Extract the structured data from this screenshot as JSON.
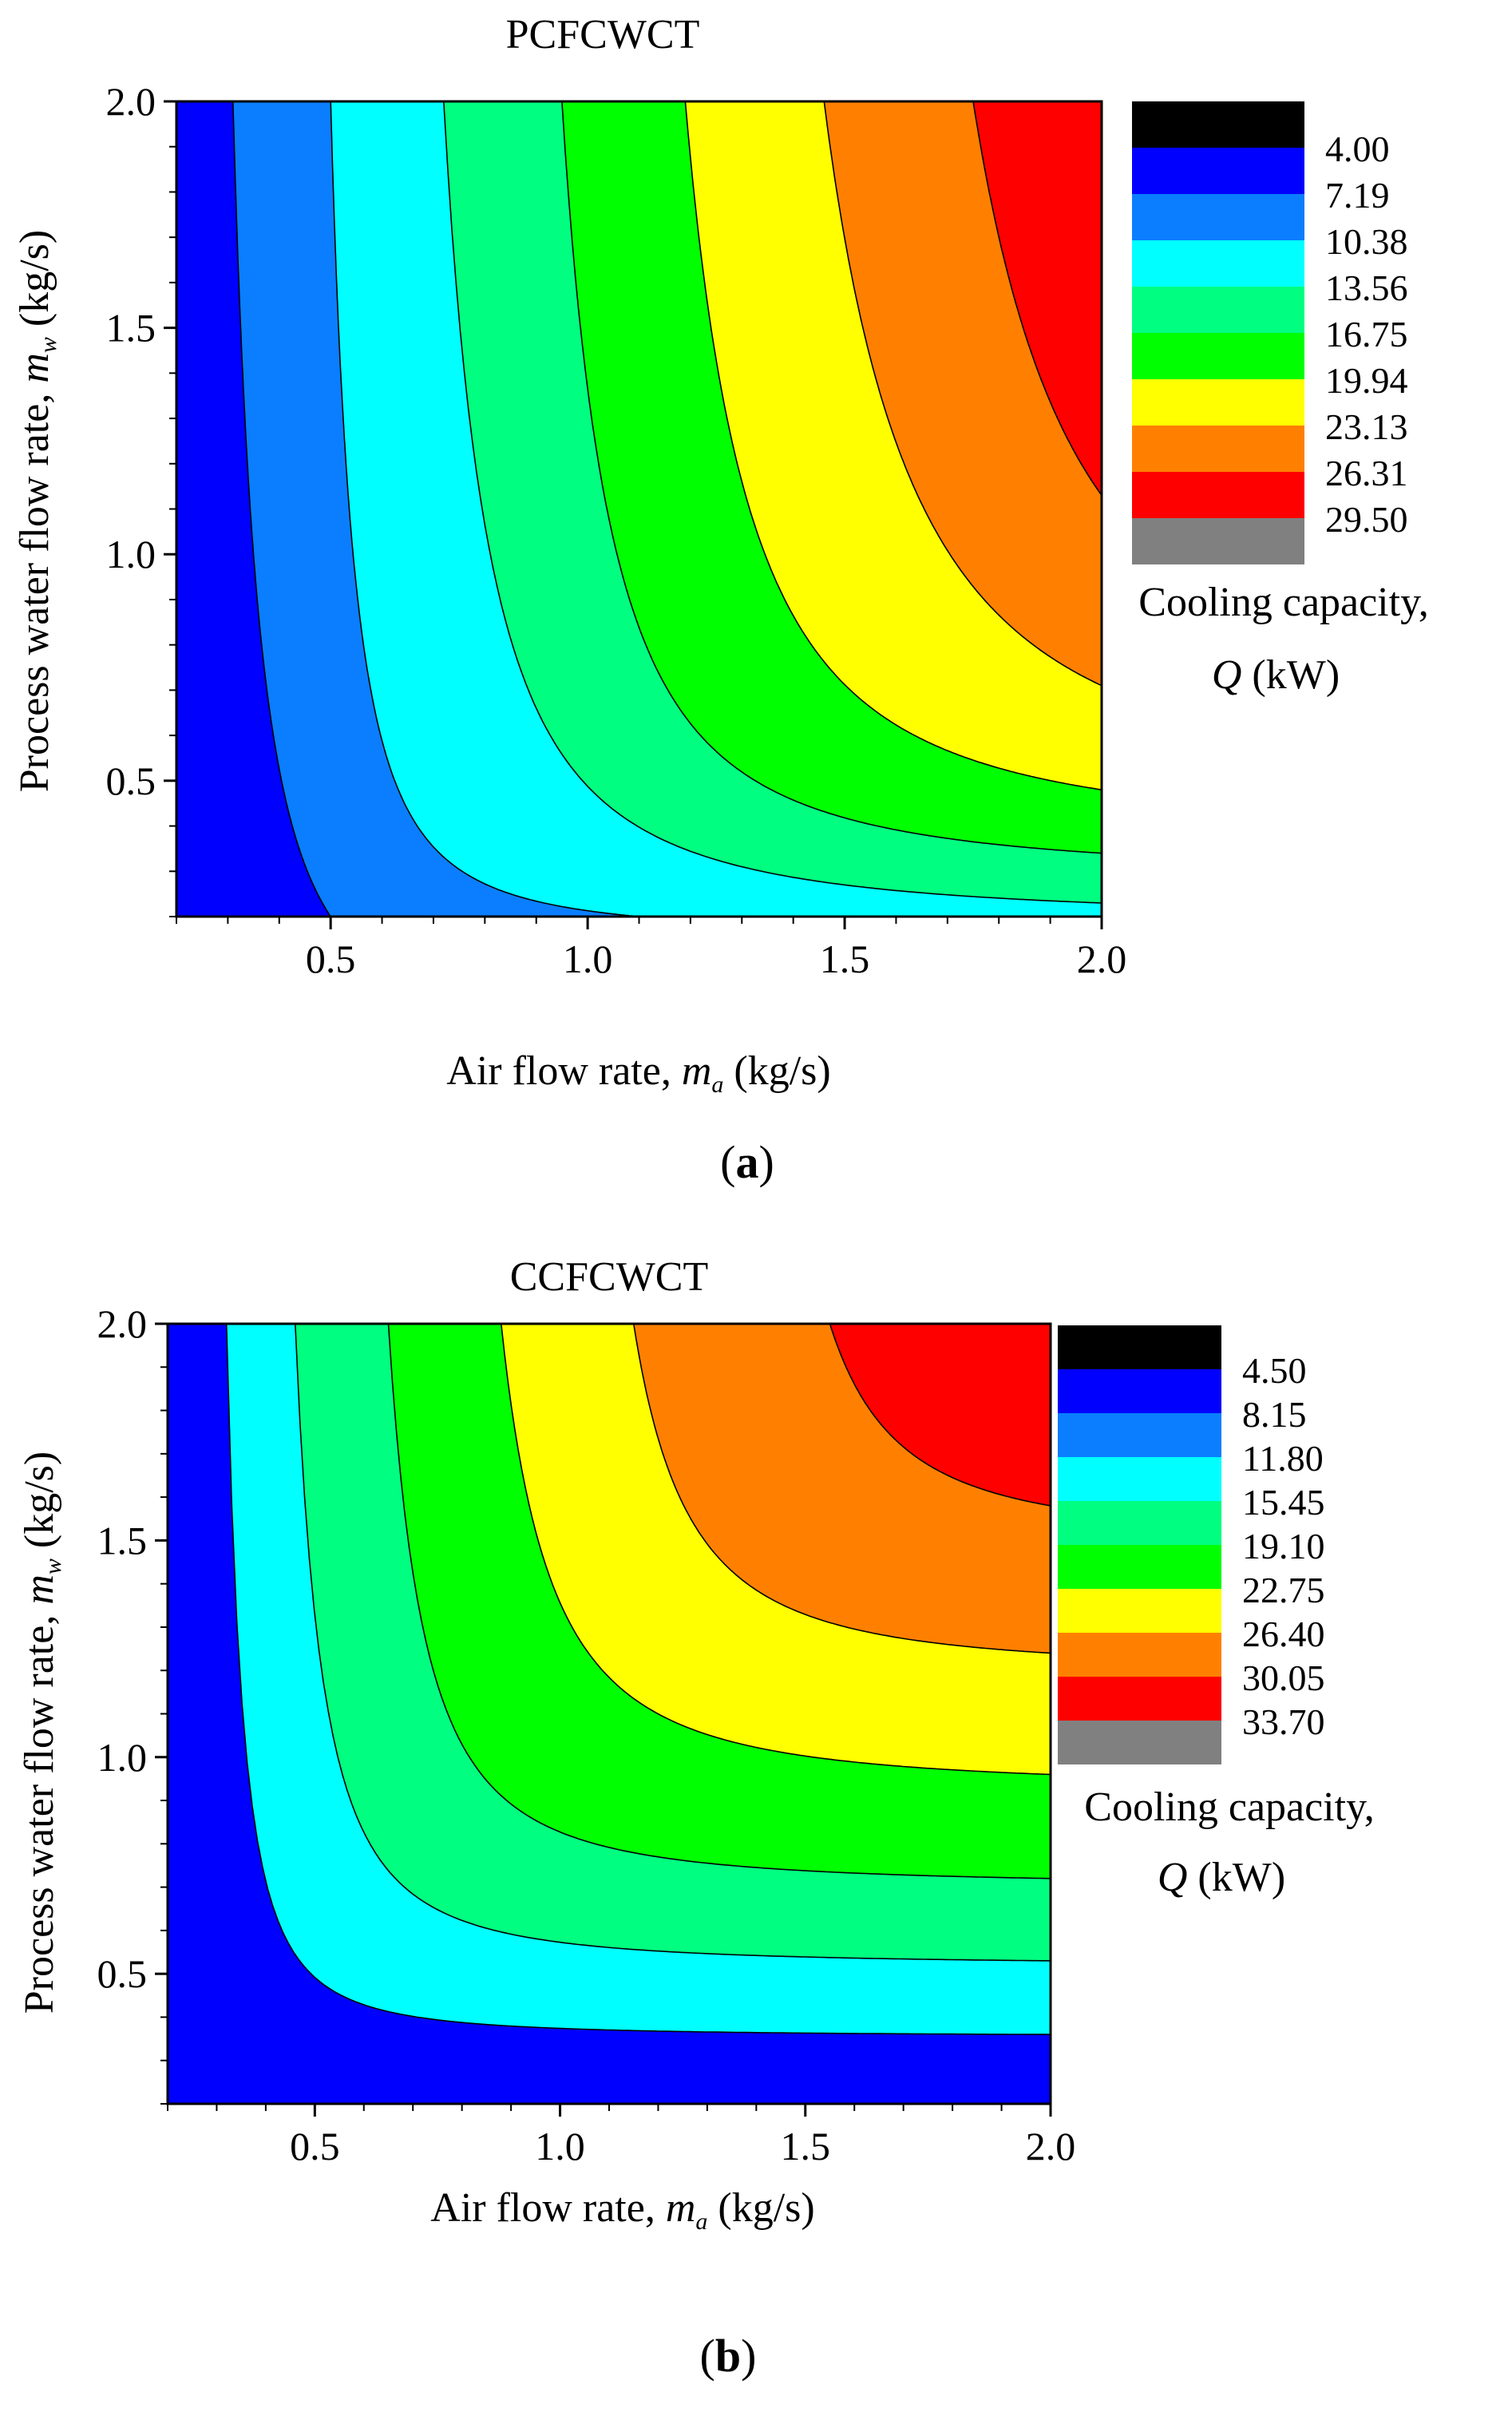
{
  "chart_data": [
    {
      "type": "contour",
      "panel_label": "a",
      "title": "PCFCWCT",
      "xlabel": {
        "prefix": "Air flow rate, ",
        "var": "m",
        "sub": "a",
        "suffix": " (kg/s)"
      },
      "ylabel": {
        "prefix": "Process water flow rate, ",
        "var": "m",
        "sub": "w",
        "suffix": " (kg/s)"
      },
      "xlim": [
        0.2,
        2.0
      ],
      "ylim": [
        0.2,
        2.0
      ],
      "xticks": [
        "0.5",
        "1.0",
        "1.5",
        "2.0"
      ],
      "yticks": [
        "0.5",
        "1.0",
        "1.5",
        "2.0"
      ],
      "legend": {
        "title_line1": "Cooling capacity,",
        "title_line2_var": "Q",
        "title_line2_unit": " (kW)",
        "levels": [
          "4.00",
          "7.19",
          "10.38",
          "13.56",
          "16.75",
          "19.94",
          "23.13",
          "26.31",
          "29.50"
        ],
        "colors": [
          "#000000",
          "#0000ff",
          "#0a7eff",
          "#00ffff",
          "#00ff80",
          "#00ff00",
          "#ffff00",
          "#ff8000",
          "#ff0000",
          "#808080"
        ]
      },
      "contours": [
        {
          "level": 7.19,
          "x_top": 0.31,
          "asymptote": 0.22,
          "y_bottom": 0.2,
          "x_bottom": 0.5
        },
        {
          "level": 10.38,
          "x_top": 0.5,
          "asymptote": 0.42,
          "y_bottom": 0.2,
          "x_bottom": 1.1
        },
        {
          "level": 13.56,
          "x_top": 0.72,
          "asymptote": 0.56,
          "y_bottom": 0.23,
          "x_bottom": 2.0
        },
        {
          "level": 16.75,
          "x_top": 0.95,
          "asymptote": 0.78,
          "y_bottom": 0.34,
          "x_bottom": 2.0
        },
        {
          "level": 19.94,
          "x_top": 1.19,
          "asymptote": 0.97,
          "y_bottom": 0.48,
          "x_bottom": 2.0
        },
        {
          "level": 23.13,
          "x_top": 1.46,
          "asymptote": 1.15,
          "y_bottom": 0.71,
          "x_bottom": 2.0
        },
        {
          "level": 26.31,
          "x_top": 1.75,
          "asymptote": 1.4,
          "y_bottom": 1.13,
          "x_bottom": 2.0
        }
      ]
    },
    {
      "type": "contour",
      "panel_label": "b",
      "title": "CCFCWCT",
      "xlabel": {
        "prefix": "Air flow rate, ",
        "var": "m",
        "sub": "a",
        "suffix": " (kg/s)"
      },
      "ylabel": {
        "prefix": "Process water flow rate, ",
        "var": "m",
        "sub": "w",
        "suffix": " (kg/s)"
      },
      "xlim": [
        0.2,
        2.0
      ],
      "ylim": [
        0.2,
        2.0
      ],
      "xticks": [
        "0.5",
        "1.0",
        "1.5",
        "2.0"
      ],
      "yticks": [
        "0.5",
        "1.0",
        "1.5",
        "2.0"
      ],
      "legend": {
        "title_line1": "Cooling capacity,",
        "title_line2_var": "Q",
        "title_line2_unit": " (kW)",
        "levels": [
          "4.50",
          "8.15",
          "11.80",
          "15.45",
          "19.10",
          "22.75",
          "26.40",
          "30.05",
          "33.70"
        ],
        "colors": [
          "#000000",
          "#0000ff",
          "#0a7eff",
          "#00ffff",
          "#00ff80",
          "#00ff00",
          "#ffff00",
          "#ff8000",
          "#ff0000",
          "#808080"
        ]
      },
      "contours": [
        {
          "level": 8.15,
          "x_top": 0.2,
          "asymptote": 0.2,
          "y_bottom": 0.22,
          "x_bottom": 2.0
        },
        {
          "level": 11.8,
          "x_top": 0.32,
          "asymptote": 0.26,
          "y_bottom": 0.36,
          "x_bottom": 2.0
        },
        {
          "level": 15.45,
          "x_top": 0.46,
          "asymptote": 0.36,
          "y_bottom": 0.53,
          "x_bottom": 2.0
        },
        {
          "level": 19.1,
          "x_top": 0.65,
          "asymptote": 0.52,
          "y_bottom": 0.72,
          "x_bottom": 2.0
        },
        {
          "level": 22.75,
          "x_top": 0.88,
          "asymptote": 0.7,
          "y_bottom": 0.96,
          "x_bottom": 2.0
        },
        {
          "level": 26.4,
          "x_top": 1.15,
          "asymptote": 0.95,
          "y_bottom": 1.24,
          "x_bottom": 2.0
        },
        {
          "level": 30.05,
          "x_top": 1.55,
          "asymptote": 1.3,
          "y_bottom": 1.58,
          "x_bottom": 2.0
        }
      ]
    }
  ]
}
